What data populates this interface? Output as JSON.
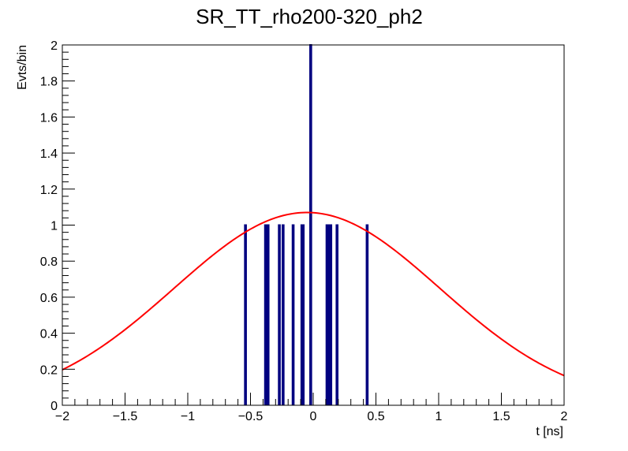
{
  "chart_data": {
    "type": "histogram",
    "title": "SR_TT_rho200-320_ph2",
    "xlabel": "t [ns]",
    "ylabel": "Evts/bin",
    "xlim": [
      -2,
      2
    ],
    "ylim": [
      0,
      2
    ],
    "x_ticks": [
      -2,
      -1.5,
      -1,
      -0.5,
      0,
      0.5,
      1,
      1.5,
      2
    ],
    "x_tick_labels": [
      "−2",
      "−1.5",
      "−1",
      "−0.5",
      "0",
      "0.5",
      "1",
      "1.5",
      "2"
    ],
    "y_ticks": [
      0,
      0.2,
      0.4,
      0.6,
      0.8,
      1,
      1.2,
      1.4,
      1.6,
      1.8,
      2
    ],
    "y_tick_labels": [
      "0",
      "0.2",
      "0.4",
      "0.6",
      "0.8",
      "1",
      "1.2",
      "1.4",
      "1.6",
      "1.8",
      "2"
    ],
    "grid": false,
    "histogram": {
      "color": "#000080",
      "bin_width": 0.01,
      "bins": [
        {
          "x": -0.54,
          "count": 1
        },
        {
          "x": -0.38,
          "count": 1
        },
        {
          "x": -0.36,
          "count": 1
        },
        {
          "x": -0.27,
          "count": 1
        },
        {
          "x": -0.24,
          "count": 1
        },
        {
          "x": -0.16,
          "count": 1
        },
        {
          "x": -0.09,
          "count": 1
        },
        {
          "x": -0.08,
          "count": 1
        },
        {
          "x": -0.02,
          "count": 2
        },
        {
          "x": 0.11,
          "count": 1
        },
        {
          "x": 0.12,
          "count": 1
        },
        {
          "x": 0.14,
          "count": 1
        },
        {
          "x": 0.19,
          "count": 1
        },
        {
          "x": 0.43,
          "count": 1
        }
      ]
    },
    "fit": {
      "type": "gaussian",
      "color": "#ff0000",
      "amplitude": 1.07,
      "mean": -0.05,
      "sigma": 1.06
    }
  }
}
